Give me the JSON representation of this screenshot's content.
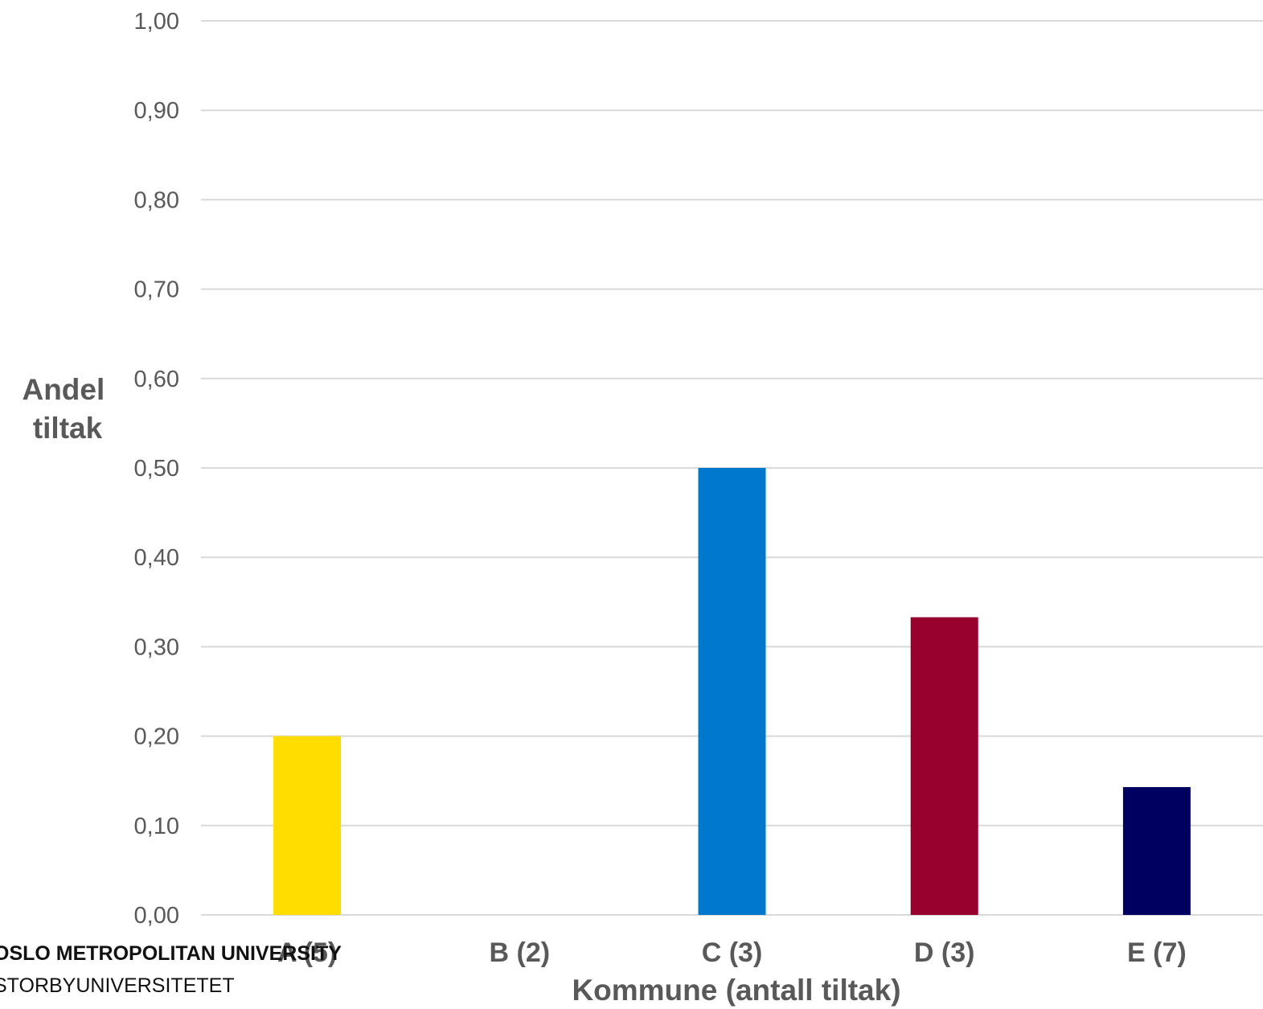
{
  "chart_data": {
    "type": "bar",
    "categories": [
      "A (5)",
      "B (2)",
      "C (3)",
      "D (3)",
      "E (7)"
    ],
    "values": [
      0.2,
      0.0,
      0.5,
      0.333,
      0.143
    ],
    "colors": [
      "#FFDD00",
      "#FFDD00",
      "#0078CE",
      "#98002E",
      "#000060"
    ],
    "ylabel_lines": [
      "Andel",
      "tiltak"
    ],
    "xlabel": "Kommune (antall tiltak)",
    "ylim": [
      0,
      1
    ],
    "yticks": [
      "0,00",
      "0,10",
      "0,20",
      "0,30",
      "0,40",
      "0,50",
      "0,60",
      "0,70",
      "0,80",
      "0,90",
      "1,00"
    ],
    "grid": true
  },
  "logo": {
    "line1": "OSLO METROPOLITAN UNIVERSITY",
    "line2": "STORBYUNIVERSITETET"
  }
}
